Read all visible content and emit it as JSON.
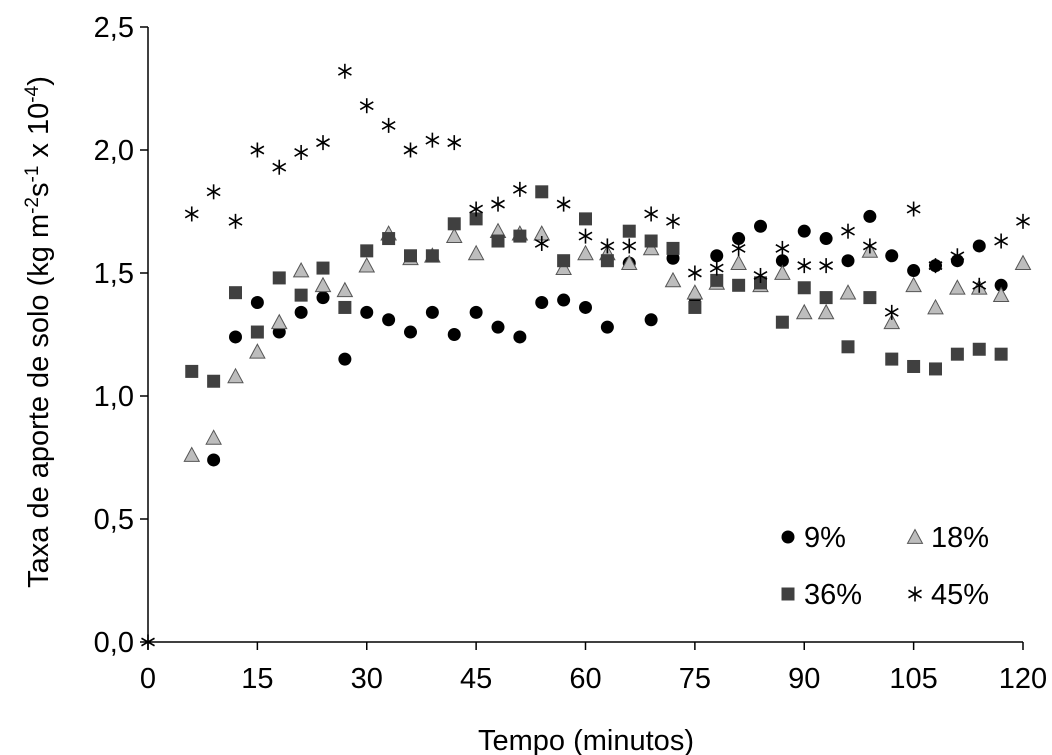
{
  "chart_data": {
    "type": "scatter",
    "xlabel": "Tempo (minutos)",
    "ylabel": {
      "base": "Taxa de aporte de solo (kg m",
      "sup1": "-2",
      "mid1": "s",
      "sup2": "-1",
      "mid2": " x 10",
      "sup3": "-4",
      "end": ")"
    },
    "xlim": [
      0,
      120
    ],
    "ylim": [
      0,
      2.5
    ],
    "xticks": [
      0,
      15,
      30,
      45,
      60,
      75,
      90,
      105,
      120
    ],
    "xtick_labels": [
      "0",
      "15",
      "30",
      "45",
      "60",
      "75",
      "90",
      "105",
      "120"
    ],
    "yticks": [
      0,
      0.5,
      1.0,
      1.5,
      2.0,
      2.5
    ],
    "ytick_labels": [
      "0,0",
      "0,5",
      "1,0",
      "1,5",
      "2,0",
      "2,5"
    ],
    "grid": false,
    "legend": "bottom-right",
    "series": [
      {
        "name": "9%",
        "marker": "circle",
        "color": "#000000",
        "points": [
          [
            9,
            0.74
          ],
          [
            12,
            1.24
          ],
          [
            15,
            1.38
          ],
          [
            18,
            1.26
          ],
          [
            21,
            1.34
          ],
          [
            24,
            1.4
          ],
          [
            27,
            1.15
          ],
          [
            30,
            1.34
          ],
          [
            33,
            1.31
          ],
          [
            36,
            1.26
          ],
          [
            39,
            1.34
          ],
          [
            42,
            1.25
          ],
          [
            45,
            1.34
          ],
          [
            48,
            1.28
          ],
          [
            51,
            1.24
          ],
          [
            54,
            1.38
          ],
          [
            57,
            1.39
          ],
          [
            60,
            1.36
          ],
          [
            63,
            1.28
          ],
          [
            66,
            1.54
          ],
          [
            69,
            1.31
          ],
          [
            72,
            1.56
          ],
          [
            75,
            1.4
          ],
          [
            78,
            1.57
          ],
          [
            81,
            1.64
          ],
          [
            84,
            1.69
          ],
          [
            87,
            1.55
          ],
          [
            90,
            1.67
          ],
          [
            93,
            1.64
          ],
          [
            96,
            1.55
          ],
          [
            99,
            1.73
          ],
          [
            102,
            1.57
          ],
          [
            105,
            1.51
          ],
          [
            108,
            1.53
          ],
          [
            111,
            1.55
          ],
          [
            114,
            1.61
          ],
          [
            117,
            1.45
          ]
        ]
      },
      {
        "name": "18%",
        "marker": "triangle",
        "color": "#bdbdbd",
        "points": [
          [
            6,
            0.76
          ],
          [
            9,
            0.83
          ],
          [
            12,
            1.08
          ],
          [
            15,
            1.18
          ],
          [
            18,
            1.3
          ],
          [
            21,
            1.51
          ],
          [
            24,
            1.45
          ],
          [
            27,
            1.43
          ],
          [
            30,
            1.53
          ],
          [
            33,
            1.66
          ],
          [
            36,
            1.56
          ],
          [
            39,
            1.57
          ],
          [
            42,
            1.65
          ],
          [
            45,
            1.58
          ],
          [
            48,
            1.67
          ],
          [
            51,
            1.66
          ],
          [
            54,
            1.66
          ],
          [
            57,
            1.52
          ],
          [
            60,
            1.58
          ],
          [
            63,
            1.58
          ],
          [
            66,
            1.54
          ],
          [
            69,
            1.6
          ],
          [
            72,
            1.47
          ],
          [
            75,
            1.42
          ],
          [
            78,
            1.46
          ],
          [
            81,
            1.54
          ],
          [
            84,
            1.45
          ],
          [
            87,
            1.5
          ],
          [
            90,
            1.34
          ],
          [
            93,
            1.34
          ],
          [
            96,
            1.42
          ],
          [
            99,
            1.59
          ],
          [
            102,
            1.3
          ],
          [
            105,
            1.45
          ],
          [
            108,
            1.36
          ],
          [
            111,
            1.44
          ],
          [
            114,
            1.44
          ],
          [
            117,
            1.41
          ],
          [
            120,
            1.54
          ]
        ]
      },
      {
        "name": "36%",
        "marker": "square",
        "color": "#404040",
        "points": [
          [
            6,
            1.1
          ],
          [
            9,
            1.06
          ],
          [
            12,
            1.42
          ],
          [
            15,
            1.26
          ],
          [
            18,
            1.48
          ],
          [
            21,
            1.41
          ],
          [
            24,
            1.52
          ],
          [
            27,
            1.36
          ],
          [
            30,
            1.59
          ],
          [
            33,
            1.64
          ],
          [
            36,
            1.57
          ],
          [
            39,
            1.57
          ],
          [
            42,
            1.7
          ],
          [
            45,
            1.72
          ],
          [
            48,
            1.63
          ],
          [
            51,
            1.65
          ],
          [
            54,
            1.83
          ],
          [
            57,
            1.55
          ],
          [
            60,
            1.72
          ],
          [
            63,
            1.55
          ],
          [
            66,
            1.67
          ],
          [
            69,
            1.63
          ],
          [
            72,
            1.6
          ],
          [
            75,
            1.36
          ],
          [
            78,
            1.47
          ],
          [
            81,
            1.45
          ],
          [
            84,
            1.46
          ],
          [
            87,
            1.3
          ],
          [
            90,
            1.44
          ],
          [
            93,
            1.4
          ],
          [
            96,
            1.2
          ],
          [
            99,
            1.4
          ],
          [
            102,
            1.15
          ],
          [
            105,
            1.12
          ],
          [
            108,
            1.11
          ],
          [
            111,
            1.17
          ],
          [
            114,
            1.19
          ],
          [
            117,
            1.17
          ]
        ]
      },
      {
        "name": "45%",
        "marker": "asterisk",
        "color": "#000000",
        "points": [
          [
            0,
            0.0
          ],
          [
            6,
            1.74
          ],
          [
            9,
            1.83
          ],
          [
            12,
            1.71
          ],
          [
            15,
            2.0
          ],
          [
            18,
            1.93
          ],
          [
            21,
            1.99
          ],
          [
            24,
            2.03
          ],
          [
            27,
            2.32
          ],
          [
            30,
            2.18
          ],
          [
            33,
            2.1
          ],
          [
            36,
            2.0
          ],
          [
            39,
            2.04
          ],
          [
            42,
            2.03
          ],
          [
            45,
            1.76
          ],
          [
            48,
            1.78
          ],
          [
            51,
            1.84
          ],
          [
            54,
            1.62
          ],
          [
            57,
            1.78
          ],
          [
            60,
            1.65
          ],
          [
            63,
            1.61
          ],
          [
            66,
            1.61
          ],
          [
            69,
            1.74
          ],
          [
            72,
            1.71
          ],
          [
            75,
            1.5
          ],
          [
            78,
            1.52
          ],
          [
            81,
            1.6
          ],
          [
            84,
            1.49
          ],
          [
            87,
            1.6
          ],
          [
            90,
            1.53
          ],
          [
            93,
            1.53
          ],
          [
            96,
            1.67
          ],
          [
            99,
            1.61
          ],
          [
            102,
            1.34
          ],
          [
            105,
            1.76
          ],
          [
            108,
            1.53
          ],
          [
            111,
            1.57
          ],
          [
            114,
            1.45
          ],
          [
            117,
            1.63
          ],
          [
            120,
            1.71
          ]
        ]
      }
    ]
  }
}
